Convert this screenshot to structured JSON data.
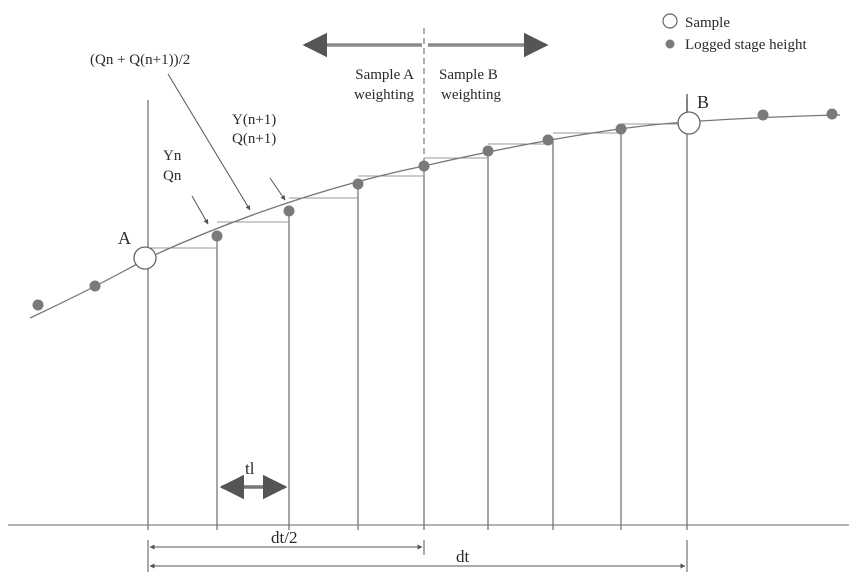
{
  "legend": {
    "sample_label": "Sample",
    "logged_label": "Logged stage height"
  },
  "labels": {
    "point_a": "A",
    "point_b": "B",
    "mid_formula": "(Qn + Q(n+1))/2",
    "yn": "Yn",
    "qn": "Qn",
    "yn1": "Y(n+1)",
    "qn1": "Q(n+1)",
    "sample_a_line1": "Sample A",
    "sample_a_line2": "weighting",
    "sample_b_line1": "Sample B",
    "sample_b_line2": "weighting",
    "tl": "tl",
    "dt_half": "dt/2",
    "dt": "dt"
  },
  "colors": {
    "line": "#777777",
    "dot": "#7a7a7a",
    "text": "#2a2a2a",
    "arrow": "#8a8a8a"
  }
}
